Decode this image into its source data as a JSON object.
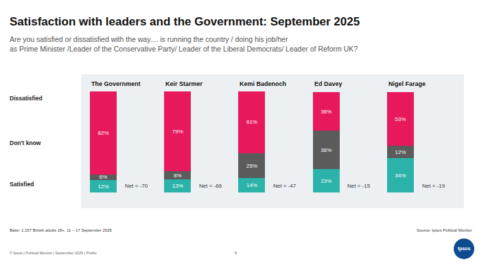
{
  "chart_data": {
    "type": "bar",
    "title": "Satisfaction with leaders and the Government: September 2025",
    "subtitle": "Are you satisfied or dissatisfied with the way.... is running the country / doing his job/her\nas Prime Minister /Leader of the Conservative Party/ Leader of the Liberal Democrats/ Leader of Reform UK?",
    "categories": [
      "The Government",
      "Keir Starmer",
      "Kemi Badenoch",
      "Ed Davey",
      "Nigel Farage"
    ],
    "series": [
      {
        "name": "Satisfied",
        "color": "#2bb3aa",
        "values": [
          12,
          13,
          14,
          23,
          34
        ],
        "value_labels": [
          "12%",
          "13%",
          "14%",
          "23%",
          "34%"
        ]
      },
      {
        "name": "Don't know",
        "color": "#5b5b5b",
        "values": [
          6,
          8,
          25,
          38,
          12
        ],
        "value_labels": [
          "6%",
          "8%",
          "25%",
          "38%",
          "12%"
        ]
      },
      {
        "name": "Dissatisfied",
        "color": "#e8185d",
        "values": [
          82,
          79,
          61,
          38,
          53
        ],
        "value_labels": [
          "82%",
          "79%",
          "61%",
          "38%",
          "53%"
        ]
      }
    ],
    "net_labels": [
      "Net = -70",
      "Net = -66",
      "Net = -47",
      "Net = -15",
      "Net = -19"
    ],
    "stacked": true,
    "data_labels": true,
    "tick_labels": false,
    "grid": false,
    "ylim": [
      0,
      100
    ],
    "annotations": {
      "base": "Base: 1,157 British adults 18+, 11 – 17 September 2025",
      "source": "Source: Ipsos Political Monitor",
      "footer": "© Ipsos | Political Monitor | September 2025 | Public",
      "page": "8",
      "logo": "Ipsos"
    }
  }
}
